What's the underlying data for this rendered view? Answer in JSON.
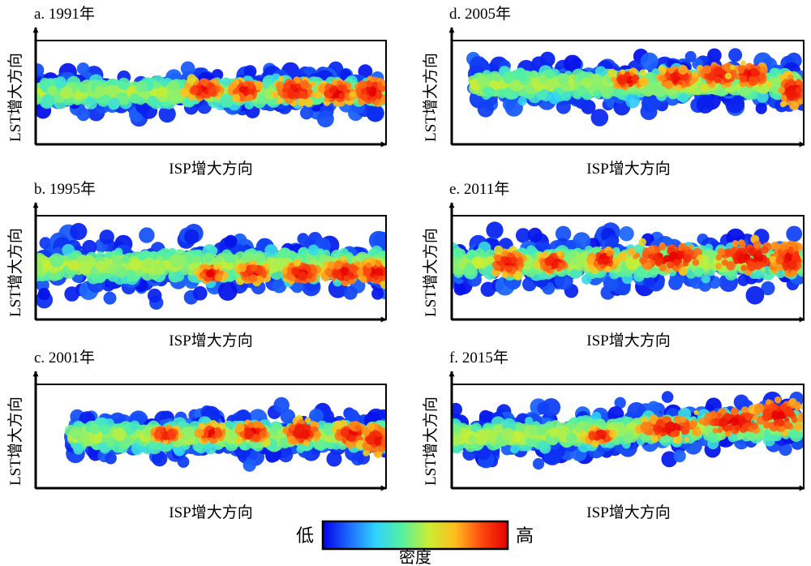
{
  "chart_data": [
    {
      "type": "heatmap",
      "title": "a. 1991年",
      "xlabel": "ISP增大方向",
      "ylabel": "LST增大方向",
      "band": {
        "start": 0.0,
        "end": 1.0,
        "center": 0.5,
        "width": 0.42
      },
      "hotspots": [
        [
          0.48,
          0.47,
          0.07,
          0.12
        ],
        [
          0.6,
          0.48,
          0.06,
          0.12
        ],
        [
          0.74,
          0.48,
          0.08,
          0.15
        ],
        [
          0.86,
          0.5,
          0.07,
          0.14
        ],
        [
          0.96,
          0.49,
          0.07,
          0.18
        ]
      ]
    },
    {
      "type": "heatmap",
      "title": "b. 1995年",
      "xlabel": "ISP增大方向",
      "ylabel": "LST增大方向",
      "band": {
        "start": 0.0,
        "end": 1.0,
        "center": 0.48,
        "width": 0.55
      },
      "hotspots": [
        [
          0.5,
          0.56,
          0.05,
          0.08
        ],
        [
          0.62,
          0.55,
          0.06,
          0.1
        ],
        [
          0.76,
          0.55,
          0.07,
          0.12
        ],
        [
          0.88,
          0.55,
          0.08,
          0.14
        ],
        [
          0.97,
          0.55,
          0.06,
          0.15
        ]
      ]
    },
    {
      "type": "heatmap",
      "title": "c. 2001年",
      "xlabel": "ISP增大方向",
      "ylabel": "LST增大方向",
      "band": {
        "start": 0.1,
        "end": 1.0,
        "center": 0.5,
        "width": 0.45
      },
      "hotspots": [
        [
          0.37,
          0.48,
          0.05,
          0.09
        ],
        [
          0.5,
          0.47,
          0.05,
          0.1
        ],
        [
          0.62,
          0.46,
          0.06,
          0.12
        ],
        [
          0.76,
          0.46,
          0.07,
          0.14
        ],
        [
          0.9,
          0.48,
          0.06,
          0.14
        ],
        [
          0.97,
          0.53,
          0.05,
          0.18
        ]
      ]
    },
    {
      "type": "heatmap",
      "title": "d. 2005年",
      "xlabel": "ISP增大方向",
      "ylabel": "LST增大方向",
      "band": {
        "start": 0.06,
        "end": 1.0,
        "center": 0.42,
        "width": 0.48
      },
      "hotspots": [
        [
          0.5,
          0.38,
          0.06,
          0.1
        ],
        [
          0.64,
          0.36,
          0.07,
          0.12
        ],
        [
          0.76,
          0.33,
          0.08,
          0.14
        ],
        [
          0.85,
          0.33,
          0.07,
          0.14
        ],
        [
          0.97,
          0.48,
          0.05,
          0.2
        ]
      ]
    },
    {
      "type": "heatmap",
      "title": "e. 2011年",
      "xlabel": "ISP增大方向",
      "ylabel": "LST增大方向",
      "band": {
        "start": 0.0,
        "end": 1.0,
        "center": 0.45,
        "width": 0.52
      },
      "hotspots": [
        [
          0.16,
          0.46,
          0.07,
          0.14
        ],
        [
          0.29,
          0.45,
          0.05,
          0.12
        ],
        [
          0.43,
          0.42,
          0.05,
          0.12
        ],
        [
          0.62,
          0.4,
          0.16,
          0.18
        ],
        [
          0.85,
          0.4,
          0.16,
          0.22
        ],
        [
          0.96,
          0.42,
          0.06,
          0.22
        ]
      ]
    },
    {
      "type": "heatmap",
      "title": "f. 2015年",
      "xlabel": "ISP增大方向",
      "ylabel": "LST增大方向",
      "band": {
        "start": 0.0,
        "end": 1.0,
        "center": 0.45,
        "width": 0.48,
        "slope": -0.12
      },
      "hotspots": [
        [
          0.42,
          0.5,
          0.05,
          0.08
        ],
        [
          0.62,
          0.42,
          0.12,
          0.14
        ],
        [
          0.8,
          0.36,
          0.14,
          0.18
        ],
        [
          0.93,
          0.3,
          0.1,
          0.22
        ]
      ]
    }
  ],
  "colorbar": {
    "label": "密度",
    "low_label": "低",
    "high_label": "高",
    "colors": [
      "#0000e6",
      "#1e6bff",
      "#2fd3ff",
      "#55f0a0",
      "#c8ee34",
      "#ffbe1e",
      "#ff4a10",
      "#e60000"
    ]
  }
}
